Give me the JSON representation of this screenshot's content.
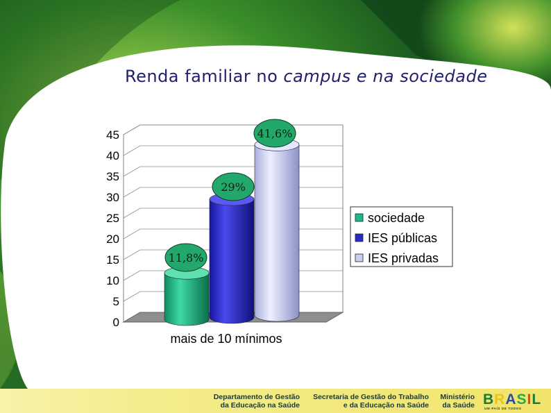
{
  "slide": {
    "title_part1": "Renda familiar no ",
    "title_italic": "campus e na sociedade"
  },
  "colors": {
    "title": "#1f1f6b",
    "sociedade": "#1fb88a",
    "ies_publicas": "#2a2ac8",
    "ies_privadas": "#c8cdf2",
    "annotation_bubble": "#22a86a"
  },
  "chart_data": {
    "type": "bar",
    "style": "3d-cylinder",
    "title": "",
    "xlabel": "",
    "ylabel": "",
    "categories": [
      "mais de 10 mínimos"
    ],
    "series": [
      {
        "name": "sociedade",
        "values": [
          11.8
        ],
        "label": "11,8%"
      },
      {
        "name": "IES públicas",
        "values": [
          29
        ],
        "label": "29%"
      },
      {
        "name": "IES privadas",
        "values": [
          41.6
        ],
        "label": "41,6%"
      }
    ],
    "ylim": [
      0,
      45
    ],
    "yticks": [
      "0",
      "5",
      "10",
      "15",
      "20",
      "25",
      "30",
      "35",
      "40",
      "45"
    ],
    "grid": true,
    "legend": "right"
  },
  "footer": {
    "dept_line1": "Departamento de Gestão",
    "dept_line2": "da Educação na Saúde",
    "sec_line1": "Secretaria de Gestão do Trabalho",
    "sec_line2": "e da Educação na Saúde",
    "min_line1": "Ministério",
    "min_line2": "da Saúde",
    "logo_text": "BRASIL",
    "logo_tagline": "UM PAÍS DE TODOS"
  }
}
